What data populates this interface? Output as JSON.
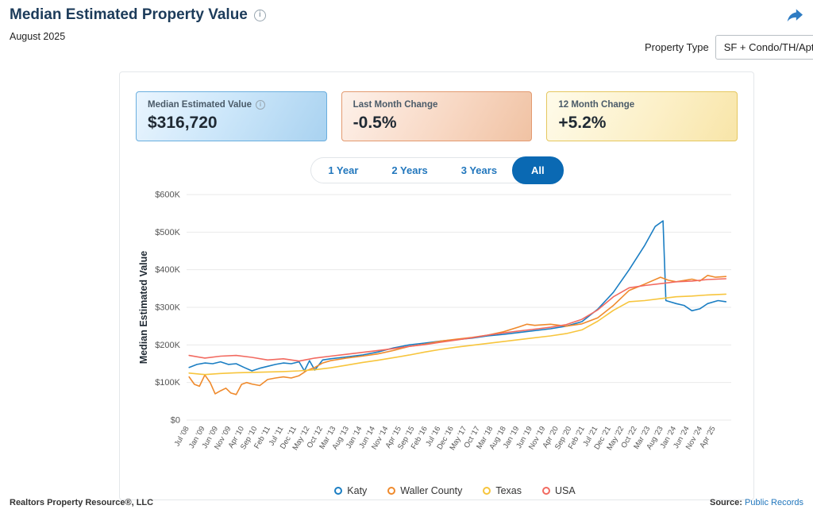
{
  "header": {
    "title": "Median Estimated Property Value",
    "subtitle": "August 2025",
    "property_type_label": "Property Type",
    "property_type_value": "SF + Condo/TH/Apt",
    "share_icon": "share-arrow",
    "accent_color": "#2e7cc3"
  },
  "stats": [
    {
      "key": "median-estimated-value",
      "label": "Median Estimated Value",
      "value": "$316,720",
      "has_info": true
    },
    {
      "key": "last-month-change",
      "label": "Last Month Change",
      "value": "-0.5%",
      "has_info": false
    },
    {
      "key": "12-month-change",
      "label": "12 Month Change",
      "value": "+5.2%",
      "has_info": false
    }
  ],
  "tabs": [
    {
      "label": "1 Year",
      "active": false
    },
    {
      "label": "2 Years",
      "active": false
    },
    {
      "label": "3 Years",
      "active": false
    },
    {
      "label": "All",
      "active": true
    }
  ],
  "footer": {
    "left": "Realtors Property Resource®, LLC",
    "source_label": "Source:",
    "source_value": "Public Records"
  },
  "chart_data": {
    "type": "line",
    "title": "",
    "ylabel": "Median Estimated Value",
    "y_unit": "thousand USD",
    "x_unit": "decimal_year",
    "ylim": [
      0,
      600
    ],
    "xlim": [
      2008.42,
      2025.75
    ],
    "grid": "horizontal",
    "legend_position": "bottom",
    "yticks": [
      {
        "label": "$0",
        "value": 0
      },
      {
        "label": "$100K",
        "value": 100
      },
      {
        "label": "$200K",
        "value": 200
      },
      {
        "label": "$300K",
        "value": 300
      },
      {
        "label": "$400K",
        "value": 400
      },
      {
        "label": "$500K",
        "value": 500
      },
      {
        "label": "$600K",
        "value": 600
      }
    ],
    "xticks": [
      {
        "label": "Jul '08",
        "t": 2008.5
      },
      {
        "label": "Jan '09",
        "t": 2009.0
      },
      {
        "label": "Jun '09",
        "t": 2009.417
      },
      {
        "label": "Nov '09",
        "t": 2009.833
      },
      {
        "label": "Apr '10",
        "t": 2010.25
      },
      {
        "label": "Sep '10",
        "t": 2010.667
      },
      {
        "label": "Feb '11",
        "t": 2011.083
      },
      {
        "label": "Jul '11",
        "t": 2011.5
      },
      {
        "label": "Dec '11",
        "t": 2011.917
      },
      {
        "label": "May '12",
        "t": 2012.333
      },
      {
        "label": "Oct '12",
        "t": 2012.75
      },
      {
        "label": "Mar '13",
        "t": 2013.167
      },
      {
        "label": "Aug '13",
        "t": 2013.583
      },
      {
        "label": "Jan '14",
        "t": 2014.0
      },
      {
        "label": "Jun '14",
        "t": 2014.417
      },
      {
        "label": "Nov '14",
        "t": 2014.833
      },
      {
        "label": "Apr '15",
        "t": 2015.25
      },
      {
        "label": "Sep '15",
        "t": 2015.667
      },
      {
        "label": "Feb '16",
        "t": 2016.083
      },
      {
        "label": "Jul '16",
        "t": 2016.5
      },
      {
        "label": "Dec '16",
        "t": 2016.917
      },
      {
        "label": "May '17",
        "t": 2017.333
      },
      {
        "label": "Oct '17",
        "t": 2017.75
      },
      {
        "label": "Mar '18",
        "t": 2018.167
      },
      {
        "label": "Aug '18",
        "t": 2018.583
      },
      {
        "label": "Jan '19",
        "t": 2019.0
      },
      {
        "label": "Jun '19",
        "t": 2019.417
      },
      {
        "label": "Nov '19",
        "t": 2019.833
      },
      {
        "label": "Apr '20",
        "t": 2020.25
      },
      {
        "label": "Sep '20",
        "t": 2020.667
      },
      {
        "label": "Feb '21",
        "t": 2021.083
      },
      {
        "label": "Jul '21",
        "t": 2021.5
      },
      {
        "label": "Dec '21",
        "t": 2021.917
      },
      {
        "label": "May '22",
        "t": 2022.333
      },
      {
        "label": "Oct '22",
        "t": 2022.75
      },
      {
        "label": "Mar '23",
        "t": 2023.167
      },
      {
        "label": "Aug '23",
        "t": 2023.583
      },
      {
        "label": "Jan '24",
        "t": 2024.0
      },
      {
        "label": "Jun '24",
        "t": 2024.417
      },
      {
        "label": "Nov '24",
        "t": 2024.833
      },
      {
        "label": "Apr '25",
        "t": 2025.25
      }
    ],
    "series": [
      {
        "name": "Katy",
        "color": "#1b7ec3",
        "x": [
          2008.5,
          2008.75,
          2009.0,
          2009.25,
          2009.5,
          2009.75,
          2010.0,
          2010.25,
          2010.5,
          2010.75,
          2011.0,
          2011.25,
          2011.5,
          2011.75,
          2012.0,
          2012.17,
          2012.33,
          2012.5,
          2012.75,
          2013.0,
          2013.5,
          2014.0,
          2014.5,
          2015.0,
          2015.5,
          2016.0,
          2016.5,
          2017.0,
          2017.5,
          2018.0,
          2018.5,
          2019.0,
          2019.5,
          2020.0,
          2020.5,
          2021.0,
          2021.5,
          2022.0,
          2022.5,
          2023.0,
          2023.33,
          2023.58,
          2023.67,
          2024.0,
          2024.25,
          2024.5,
          2024.75,
          2025.0,
          2025.33,
          2025.58
        ],
        "y": [
          140,
          148,
          152,
          150,
          155,
          148,
          150,
          140,
          131,
          138,
          143,
          148,
          152,
          150,
          155,
          131,
          158,
          133,
          160,
          163,
          168,
          173,
          181,
          192,
          200,
          205,
          210,
          214,
          218,
          224,
          228,
          233,
          238,
          243,
          250,
          262,
          295,
          340,
          400,
          465,
          515,
          530,
          318,
          310,
          305,
          291,
          296,
          310,
          318,
          315
        ]
      },
      {
        "name": "Waller County",
        "color": "#ef8a2c",
        "x": [
          2008.5,
          2008.67,
          2008.83,
          2009.0,
          2009.17,
          2009.33,
          2009.5,
          2009.67,
          2009.83,
          2010.0,
          2010.17,
          2010.33,
          2010.5,
          2010.75,
          2011.0,
          2011.25,
          2011.5,
          2011.75,
          2012.0,
          2012.25,
          2012.5,
          2012.75,
          2013.0,
          2013.5,
          2014.0,
          2014.5,
          2015.0,
          2015.5,
          2016.0,
          2016.5,
          2017.0,
          2017.5,
          2018.0,
          2018.5,
          2019.0,
          2019.25,
          2019.5,
          2020.0,
          2020.5,
          2021.0,
          2021.5,
          2022.0,
          2022.5,
          2023.0,
          2023.5,
          2023.75,
          2024.0,
          2024.5,
          2024.75,
          2025.0,
          2025.25,
          2025.58
        ],
        "y": [
          115,
          95,
          90,
          120,
          100,
          70,
          78,
          85,
          72,
          68,
          95,
          100,
          96,
          92,
          108,
          112,
          115,
          112,
          118,
          132,
          140,
          152,
          158,
          165,
          170,
          176,
          185,
          196,
          202,
          210,
          215,
          220,
          226,
          235,
          248,
          255,
          252,
          255,
          250,
          256,
          272,
          305,
          345,
          362,
          380,
          372,
          368,
          375,
          370,
          385,
          380,
          382
        ]
      },
      {
        "name": "Texas",
        "color": "#f7c53d",
        "x": [
          2008.5,
          2009.0,
          2009.5,
          2010.0,
          2010.5,
          2011.0,
          2011.5,
          2012.0,
          2012.5,
          2013.0,
          2013.5,
          2014.0,
          2014.5,
          2015.0,
          2015.5,
          2016.0,
          2016.5,
          2017.0,
          2017.5,
          2018.0,
          2018.5,
          2019.0,
          2019.5,
          2020.0,
          2020.5,
          2021.0,
          2021.5,
          2022.0,
          2022.5,
          2023.0,
          2023.5,
          2024.0,
          2024.5,
          2025.0,
          2025.58
        ],
        "y": [
          125,
          121,
          124,
          126,
          127,
          128,
          129,
          131,
          134,
          139,
          146,
          153,
          159,
          166,
          173,
          181,
          188,
          194,
          199,
          204,
          209,
          214,
          219,
          224,
          230,
          240,
          263,
          292,
          315,
          318,
          323,
          328,
          330,
          333,
          335
        ]
      },
      {
        "name": "USA",
        "color": "#f26a60",
        "x": [
          2008.5,
          2009.0,
          2009.5,
          2010.0,
          2010.5,
          2011.0,
          2011.5,
          2012.0,
          2012.5,
          2013.0,
          2013.5,
          2014.0,
          2014.5,
          2015.0,
          2015.5,
          2016.0,
          2016.5,
          2017.0,
          2017.5,
          2018.0,
          2018.5,
          2019.0,
          2019.5,
          2020.0,
          2020.5,
          2021.0,
          2021.5,
          2022.0,
          2022.5,
          2023.0,
          2023.5,
          2024.0,
          2024.5,
          2025.0,
          2025.58
        ],
        "y": [
          172,
          165,
          170,
          172,
          167,
          160,
          163,
          157,
          165,
          170,
          175,
          180,
          185,
          190,
          196,
          201,
          207,
          213,
          219,
          226,
          232,
          237,
          242,
          247,
          254,
          268,
          293,
          328,
          352,
          358,
          363,
          368,
          370,
          374,
          376
        ]
      }
    ]
  }
}
